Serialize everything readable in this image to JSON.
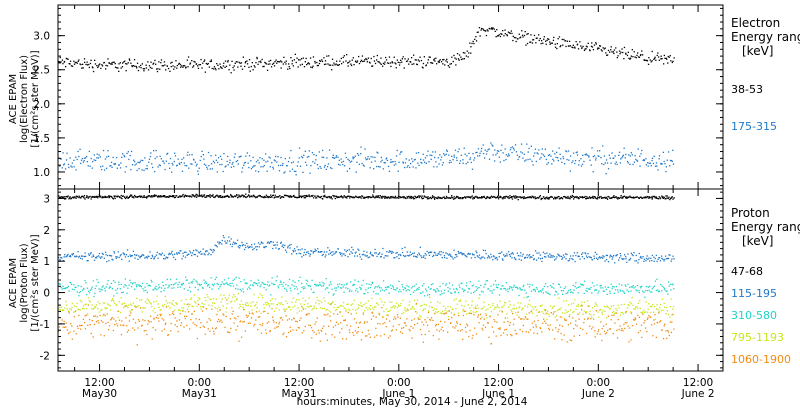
{
  "chart_data": {
    "type": "scatter",
    "xlabel": "hours:minutes, May 30, 2014 - June  2, 2014",
    "x_ticks": [
      {
        "time": "12:00",
        "date": "May30"
      },
      {
        "time": "0:00",
        "date": "May31"
      },
      {
        "time": "12:00",
        "date": "May31"
      },
      {
        "time": "0:00",
        "date": "June 1"
      },
      {
        "time": "12:00",
        "date": "June 1"
      },
      {
        "time": "0:00",
        "date": "June 2"
      },
      {
        "time": "12:00",
        "date": "June 2"
      }
    ],
    "xlim": [
      "2014-05-30 07:00",
      "2014-06-02 15:00"
    ],
    "panels": [
      {
        "id": "electron",
        "ylabel": [
          "ACE EPAM",
          "log(Electron Flux)",
          "[1/(cm²s ster MeV)]"
        ],
        "ylim": [
          0.75,
          3.45
        ],
        "yticks": [
          1.0,
          1.5,
          2.0,
          2.5,
          3.0
        ],
        "ytick_labels": [
          "1.0",
          "1.5",
          "2.0",
          "2.5",
          "3.0"
        ],
        "legend_title": [
          "Electron",
          "Energy ranges",
          "[keV]"
        ],
        "series": [
          {
            "name": "38-53",
            "color": "#000000",
            "points": [
              [
                "2014-05-30 07:00",
                2.62
              ],
              [
                "2014-05-30 12:00",
                2.58
              ],
              [
                "2014-05-31 00:00",
                2.57
              ],
              [
                "2014-05-31 12:00",
                2.62
              ],
              [
                "2014-06-01 00:00",
                2.63
              ],
              [
                "2014-06-01 06:00",
                2.63
              ],
              [
                "2014-06-01 08:00",
                2.7
              ],
              [
                "2014-06-01 09:00",
                2.95
              ],
              [
                "2014-06-01 10:00",
                3.12
              ],
              [
                "2014-06-01 12:00",
                3.05
              ],
              [
                "2014-06-01 18:00",
                2.92
              ],
              [
                "2014-06-02 00:00",
                2.8
              ],
              [
                "2014-06-02 06:00",
                2.67
              ],
              [
                "2014-06-02 09:00",
                2.64
              ]
            ]
          },
          {
            "name": "175-315",
            "color": "#1f78c8",
            "points": [
              [
                "2014-05-30 07:00",
                1.18
              ],
              [
                "2014-05-31 00:00",
                1.15
              ],
              [
                "2014-06-01 00:00",
                1.18
              ],
              [
                "2014-06-01 09:00",
                1.22
              ],
              [
                "2014-06-01 10:00",
                1.33
              ],
              [
                "2014-06-01 14:00",
                1.27
              ],
              [
                "2014-06-02 00:00",
                1.2
              ],
              [
                "2014-06-02 09:00",
                1.2
              ]
            ]
          }
        ]
      },
      {
        "id": "proton",
        "ylabel": [
          "ACE EPAM",
          "log(Proton Flux)",
          "[1/(cm²s ster MeV)]"
        ],
        "ylim": [
          -2.5,
          3.3
        ],
        "yticks": [
          -2,
          -1,
          0,
          1,
          2,
          3
        ],
        "ytick_labels": [
          "-2",
          "-1",
          "0",
          "1",
          "2",
          "3"
        ],
        "legend_title": [
          "Proton",
          "Energy ranges",
          "[keV]"
        ],
        "series": [
          {
            "name": "47-68",
            "color": "#000000",
            "points": [
              [
                "2014-05-30 07:00",
                3.05
              ],
              [
                "2014-05-31 02:00",
                3.1
              ],
              [
                "2014-06-01 00:00",
                3.05
              ],
              [
                "2014-06-02 09:00",
                3.05
              ]
            ]
          },
          {
            "name": "115-195",
            "color": "#1f78c8",
            "points": [
              [
                "2014-05-30 07:00",
                1.15
              ],
              [
                "2014-05-30 20:00",
                1.2
              ],
              [
                "2014-05-31 01:00",
                1.3
              ],
              [
                "2014-05-31 03:00",
                1.75
              ],
              [
                "2014-05-31 06:00",
                1.45
              ],
              [
                "2014-05-31 09:00",
                1.6
              ],
              [
                "2014-05-31 12:00",
                1.3
              ],
              [
                "2014-06-01 00:00",
                1.25
              ],
              [
                "2014-06-01 12:00",
                1.2
              ],
              [
                "2014-06-02 09:00",
                1.1
              ]
            ]
          },
          {
            "name": "310-580",
            "color": "#22d3c8",
            "points": [
              [
                "2014-05-30 07:00",
                0.15
              ],
              [
                "2014-05-31 03:00",
                0.3
              ],
              [
                "2014-06-01 00:00",
                0.15
              ],
              [
                "2014-06-02 09:00",
                0.15
              ]
            ]
          },
          {
            "name": "795-1193",
            "color": "#c8e619",
            "points": [
              [
                "2014-05-30 07:00",
                -0.45
              ],
              [
                "2014-05-31 03:00",
                -0.3
              ],
              [
                "2014-06-01 00:00",
                -0.45
              ],
              [
                "2014-06-02 09:00",
                -0.5
              ]
            ]
          },
          {
            "name": "1060-1900",
            "color": "#f08c14",
            "points": [
              [
                "2014-05-30 07:00",
                -1.0
              ],
              [
                "2014-05-31 03:00",
                -0.9
              ],
              [
                "2014-06-01 00:00",
                -1.0
              ],
              [
                "2014-06-02 09:00",
                -1.0
              ]
            ]
          }
        ]
      }
    ],
    "grid": false,
    "legend_placement": "right"
  }
}
